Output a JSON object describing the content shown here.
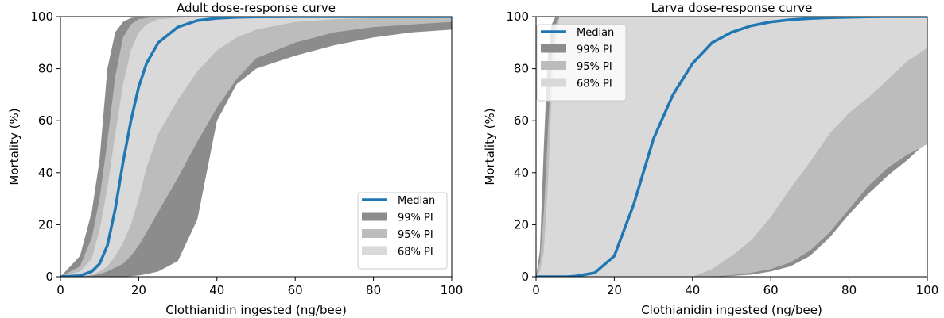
{
  "chart_data": [
    {
      "type": "area",
      "title": "Adult dose-response curve",
      "xlabel": "Clothianidin ingested (ng/bee)",
      "ylabel": "Mortality (%)",
      "xlim": [
        0,
        100
      ],
      "ylim": [
        0,
        100
      ],
      "xticks": [
        0,
        20,
        40,
        60,
        80,
        100
      ],
      "yticks": [
        0,
        20,
        40,
        60,
        80,
        100
      ],
      "x_tick_labels": [
        "0",
        "20",
        "40",
        "60",
        "80",
        "100"
      ],
      "y_tick_labels": [
        "0",
        "20",
        "40",
        "60",
        "80",
        "100"
      ],
      "grid": false,
      "legend_position": "lower-right",
      "legend": [
        "Median",
        "99% PI",
        "95% PI",
        "68% PI"
      ],
      "x": [
        0,
        5,
        8,
        10,
        12,
        14,
        16,
        18,
        20,
        22,
        25,
        30,
        35,
        40,
        45,
        50,
        60,
        70,
        80,
        90,
        100
      ],
      "series": [
        {
          "name": "Median",
          "role": "line",
          "color": "#1f77b4",
          "values": [
            0,
            0.4,
            2,
            5,
            12,
            26,
            44,
            60,
            73,
            82,
            90,
            96,
            98.5,
            99.4,
            99.8,
            99.9,
            100,
            100,
            100,
            100,
            100
          ]
        },
        {
          "name": "99% PI",
          "role": "band",
          "color": "#8c8c8c",
          "lower": [
            0,
            0,
            0,
            0,
            0,
            0,
            0.1,
            0.2,
            0.5,
            1,
            2,
            6,
            22,
            60,
            74,
            80,
            85,
            89,
            92,
            94,
            95
          ],
          "upper": [
            0,
            8,
            25,
            45,
            80,
            94,
            98,
            99.5,
            100,
            100,
            100,
            100,
            100,
            100,
            100,
            100,
            100,
            100,
            100,
            100,
            100
          ]
        },
        {
          "name": "95% PI",
          "role": "band",
          "color": "#bcbcbc",
          "lower": [
            0,
            0.1,
            0.4,
            1,
            2,
            3.5,
            5,
            8,
            12,
            17,
            25,
            38,
            52,
            65,
            76,
            84,
            90,
            94,
            96,
            97,
            98
          ],
          "upper": [
            0,
            4,
            15,
            30,
            52,
            77,
            92,
            97,
            99,
            99.5,
            100,
            100,
            100,
            100,
            100,
            100,
            100,
            100,
            100,
            100,
            100
          ]
        },
        {
          "name": "68% PI",
          "role": "band",
          "color": "#d9d9d9",
          "lower": [
            0,
            0.2,
            0.8,
            2,
            4,
            8,
            13,
            20,
            30,
            42,
            55,
            68,
            79,
            87,
            92,
            95,
            98,
            99,
            99.5,
            100,
            100
          ],
          "upper": [
            0,
            2,
            7,
            18,
            34,
            55,
            74,
            87,
            94,
            97,
            99,
            99.5,
            100,
            100,
            100,
            100,
            100,
            100,
            100,
            100,
            100
          ]
        }
      ]
    },
    {
      "type": "area",
      "title": "Larva dose-response curve",
      "xlabel": "Clothianidin ingested (ng/bee)",
      "ylabel": "Mortality (%)",
      "xlim": [
        0,
        100
      ],
      "ylim": [
        0,
        100
      ],
      "xticks": [
        0,
        20,
        40,
        60,
        80,
        100
      ],
      "yticks": [
        0,
        20,
        40,
        60,
        80,
        100
      ],
      "x_tick_labels": [
        "0",
        "20",
        "40",
        "60",
        "80",
        "100"
      ],
      "y_tick_labels": [
        "0",
        "20",
        "40",
        "60",
        "80",
        "100"
      ],
      "grid": false,
      "legend_position": "upper-left",
      "legend": [
        "Median",
        "99% PI",
        "95% PI",
        "68% PI"
      ],
      "x": [
        0,
        1,
        2,
        3,
        4,
        5,
        6,
        8,
        10,
        15,
        20,
        25,
        30,
        35,
        40,
        45,
        50,
        55,
        60,
        65,
        70,
        75,
        80,
        85,
        90,
        95,
        100
      ],
      "series": [
        {
          "name": "Median",
          "role": "line",
          "color": "#1f77b4",
          "values": [
            0,
            0,
            0,
            0,
            0,
            0,
            0,
            0,
            0.2,
            1.5,
            8,
            28,
            53,
            70,
            82,
            90,
            94,
            96.5,
            98,
            98.8,
            99.3,
            99.6,
            99.8,
            99.9,
            100,
            100,
            100
          ]
        },
        {
          "name": "99% PI",
          "role": "band",
          "color": "#8c8c8c",
          "lower": [
            0,
            0,
            0,
            0,
            0,
            0,
            0,
            0,
            0,
            0,
            0,
            0,
            0,
            0,
            0,
            0,
            0.3,
            0.8,
            2,
            4,
            8,
            15,
            24,
            32,
            39,
            45,
            52
          ],
          "upper": [
            0,
            10,
            50,
            85,
            97,
            100,
            100,
            100,
            100,
            100,
            100,
            100,
            100,
            100,
            100,
            100,
            100,
            100,
            100,
            100,
            100,
            100,
            100,
            100,
            100,
            100,
            100
          ]
        },
        {
          "name": "95% PI",
          "role": "band",
          "color": "#bcbcbc",
          "lower": [
            0,
            0,
            0,
            0,
            0,
            0,
            0,
            0,
            0,
            0,
            0,
            0,
            0,
            0,
            0,
            0,
            0.6,
            1.5,
            3,
            5.5,
            10,
            17,
            26,
            35,
            42,
            47,
            51
          ],
          "upper": [
            0,
            6,
            25,
            55,
            85,
            97,
            100,
            100,
            100,
            100,
            100,
            100,
            100,
            100,
            100,
            100,
            100,
            100,
            100,
            100,
            100,
            100,
            100,
            100,
            100,
            100,
            100
          ]
        },
        {
          "name": "68% PI",
          "role": "band",
          "color": "#d9d9d9",
          "lower": [
            0,
            0,
            0,
            0,
            0,
            0,
            0,
            0,
            0,
            0,
            0,
            0,
            0,
            0,
            0,
            3,
            8,
            14,
            23,
            34,
            44,
            55,
            63,
            69,
            76,
            83,
            88
          ],
          "upper": [
            0,
            2,
            10,
            35,
            70,
            90,
            100,
            100,
            100,
            100,
            100,
            100,
            100,
            100,
            100,
            100,
            100,
            100,
            100,
            100,
            100,
            100,
            100,
            100,
            100,
            100,
            100
          ]
        }
      ]
    }
  ]
}
